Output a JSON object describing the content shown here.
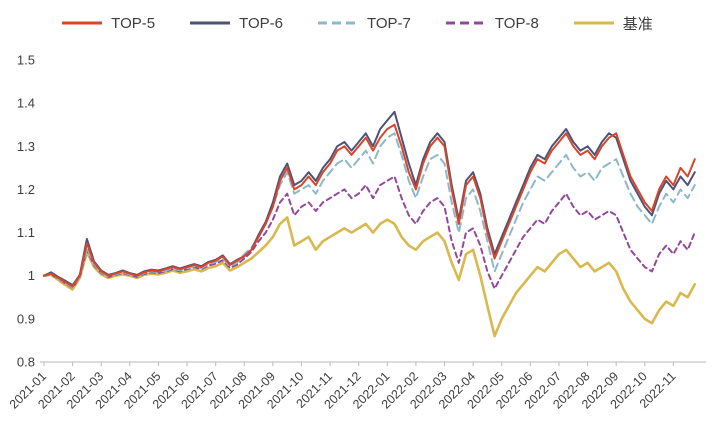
{
  "page": {
    "background": "#ffffff"
  },
  "chart_data": {
    "type": "line",
    "title": "",
    "xlabel": "",
    "ylabel": "",
    "grid": false,
    "legend_position": "top",
    "x_domain": [
      0,
      23
    ],
    "x_axis": {
      "step_per_point": 0.25,
      "tick_labels": [
        "2021-01",
        "2021-02",
        "2021-03",
        "2021-04",
        "2021-05",
        "2021-06",
        "2021-07",
        "2021-08",
        "2021-09",
        "2021-10",
        "2021-11",
        "2021-12",
        "2022-01",
        "2022-02",
        "2022-03",
        "2022-04",
        "2022-05",
        "2022-06",
        "2022-07",
        "2022-08",
        "2022-09",
        "2022-10",
        "2022-11"
      ]
    },
    "y_axis": {
      "range": [
        0.8,
        1.5
      ],
      "ticks": [
        0.8,
        0.9,
        1,
        1.1,
        1.2,
        1.3,
        1.4,
        1.5
      ],
      "tick_labels": [
        "0.8",
        "0.9",
        "1",
        "1.1",
        "1.2",
        "1.3",
        "1.4",
        "1.5"
      ]
    },
    "series": [
      {
        "id": "top-5",
        "name": "TOP-5",
        "color": "#d6462b",
        "width": 2,
        "dasharray": null,
        "values": [
          1.0,
          1.005,
          0.995,
          0.985,
          0.975,
          1.0,
          1.075,
          1.03,
          1.01,
          1.0,
          1.005,
          1.01,
          1.005,
          1.0,
          1.008,
          1.012,
          1.01,
          1.015,
          1.02,
          1.015,
          1.02,
          1.025,
          1.02,
          1.03,
          1.035,
          1.045,
          1.025,
          1.035,
          1.045,
          1.06,
          1.09,
          1.12,
          1.16,
          1.22,
          1.25,
          1.2,
          1.21,
          1.23,
          1.21,
          1.24,
          1.26,
          1.29,
          1.3,
          1.28,
          1.3,
          1.32,
          1.29,
          1.32,
          1.34,
          1.35,
          1.3,
          1.24,
          1.2,
          1.26,
          1.3,
          1.32,
          1.3,
          1.2,
          1.12,
          1.21,
          1.23,
          1.18,
          1.1,
          1.04,
          1.08,
          1.12,
          1.16,
          1.2,
          1.24,
          1.27,
          1.26,
          1.29,
          1.31,
          1.33,
          1.3,
          1.28,
          1.29,
          1.27,
          1.3,
          1.32,
          1.33,
          1.28,
          1.23,
          1.2,
          1.17,
          1.15,
          1.2,
          1.23,
          1.21,
          1.25,
          1.23,
          1.27
        ]
      },
      {
        "id": "top-6",
        "name": "TOP-6",
        "color": "#4e5277",
        "width": 2,
        "dasharray": null,
        "values": [
          1.0,
          1.008,
          0.997,
          0.988,
          0.978,
          1.002,
          1.085,
          1.033,
          1.012,
          1.002,
          1.006,
          1.012,
          1.006,
          1.002,
          1.01,
          1.014,
          1.012,
          1.017,
          1.022,
          1.017,
          1.022,
          1.027,
          1.022,
          1.032,
          1.037,
          1.047,
          1.027,
          1.037,
          1.045,
          1.06,
          1.095,
          1.125,
          1.17,
          1.23,
          1.26,
          1.21,
          1.22,
          1.24,
          1.22,
          1.25,
          1.27,
          1.3,
          1.31,
          1.29,
          1.31,
          1.33,
          1.3,
          1.34,
          1.36,
          1.38,
          1.32,
          1.26,
          1.21,
          1.27,
          1.31,
          1.33,
          1.31,
          1.21,
          1.13,
          1.22,
          1.24,
          1.19,
          1.11,
          1.05,
          1.09,
          1.13,
          1.17,
          1.21,
          1.25,
          1.28,
          1.27,
          1.3,
          1.32,
          1.34,
          1.31,
          1.29,
          1.3,
          1.28,
          1.31,
          1.33,
          1.32,
          1.27,
          1.22,
          1.19,
          1.16,
          1.14,
          1.19,
          1.22,
          1.2,
          1.23,
          1.21,
          1.24
        ]
      },
      {
        "id": "top-7",
        "name": "TOP-7",
        "color": "#8cb8c9",
        "width": 2,
        "dasharray": "8 5",
        "values": [
          1.0,
          1.004,
          0.994,
          0.983,
          0.973,
          0.998,
          1.065,
          1.026,
          1.008,
          0.998,
          1.003,
          1.008,
          1.003,
          0.998,
          1.006,
          1.01,
          1.008,
          1.012,
          1.017,
          1.012,
          1.017,
          1.022,
          1.017,
          1.027,
          1.032,
          1.04,
          1.022,
          1.03,
          1.05,
          1.065,
          1.09,
          1.12,
          1.16,
          1.21,
          1.24,
          1.19,
          1.2,
          1.21,
          1.19,
          1.22,
          1.24,
          1.26,
          1.27,
          1.25,
          1.27,
          1.29,
          1.26,
          1.3,
          1.32,
          1.33,
          1.28,
          1.22,
          1.18,
          1.23,
          1.27,
          1.28,
          1.26,
          1.17,
          1.1,
          1.18,
          1.2,
          1.15,
          1.08,
          1.01,
          1.05,
          1.09,
          1.13,
          1.17,
          1.2,
          1.23,
          1.22,
          1.24,
          1.26,
          1.28,
          1.25,
          1.23,
          1.24,
          1.22,
          1.25,
          1.26,
          1.27,
          1.23,
          1.19,
          1.16,
          1.14,
          1.12,
          1.16,
          1.19,
          1.17,
          1.2,
          1.18,
          1.21
        ]
      },
      {
        "id": "top-8",
        "name": "TOP-8",
        "color": "#93489b",
        "width": 2,
        "dasharray": "5 4",
        "values": [
          1.0,
          1.003,
          0.993,
          0.982,
          0.972,
          0.997,
          1.06,
          1.024,
          1.006,
          0.997,
          1.002,
          1.006,
          1.002,
          0.997,
          1.004,
          1.008,
          1.006,
          1.01,
          1.015,
          1.01,
          1.015,
          1.02,
          1.015,
          1.024,
          1.028,
          1.036,
          1.018,
          1.026,
          1.04,
          1.055,
          1.08,
          1.1,
          1.13,
          1.17,
          1.19,
          1.14,
          1.16,
          1.17,
          1.15,
          1.17,
          1.18,
          1.19,
          1.2,
          1.18,
          1.19,
          1.21,
          1.18,
          1.21,
          1.22,
          1.23,
          1.18,
          1.14,
          1.12,
          1.15,
          1.17,
          1.18,
          1.16,
          1.08,
          1.03,
          1.1,
          1.11,
          1.07,
          1.01,
          0.97,
          1.0,
          1.03,
          1.06,
          1.09,
          1.11,
          1.13,
          1.12,
          1.15,
          1.17,
          1.19,
          1.16,
          1.14,
          1.15,
          1.13,
          1.14,
          1.15,
          1.14,
          1.1,
          1.06,
          1.04,
          1.02,
          1.01,
          1.05,
          1.07,
          1.05,
          1.08,
          1.06,
          1.1
        ]
      },
      {
        "id": "benchmark",
        "name": "基准",
        "color": "#d9b94e",
        "width": 2.6,
        "dasharray": null,
        "values": [
          1.0,
          1.002,
          0.99,
          0.978,
          0.968,
          0.995,
          1.055,
          1.02,
          1.003,
          0.995,
          1.0,
          1.003,
          1.0,
          0.995,
          1.002,
          1.005,
          1.003,
          1.007,
          1.012,
          1.007,
          1.01,
          1.015,
          1.01,
          1.018,
          1.022,
          1.03,
          1.012,
          1.02,
          1.03,
          1.04,
          1.055,
          1.07,
          1.09,
          1.12,
          1.135,
          1.07,
          1.08,
          1.09,
          1.06,
          1.08,
          1.09,
          1.1,
          1.11,
          1.1,
          1.11,
          1.12,
          1.1,
          1.12,
          1.13,
          1.12,
          1.09,
          1.07,
          1.06,
          1.08,
          1.09,
          1.1,
          1.08,
          1.03,
          0.99,
          1.05,
          1.06,
          1.0,
          0.93,
          0.86,
          0.9,
          0.93,
          0.96,
          0.98,
          1.0,
          1.02,
          1.01,
          1.03,
          1.05,
          1.06,
          1.04,
          1.02,
          1.03,
          1.01,
          1.02,
          1.03,
          1.01,
          0.97,
          0.94,
          0.92,
          0.9,
          0.89,
          0.92,
          0.94,
          0.93,
          0.96,
          0.95,
          0.98
        ]
      }
    ],
    "style": {
      "axis_color": "#b9b9b9",
      "tick_label_color": "#3d3d3d"
    }
  }
}
